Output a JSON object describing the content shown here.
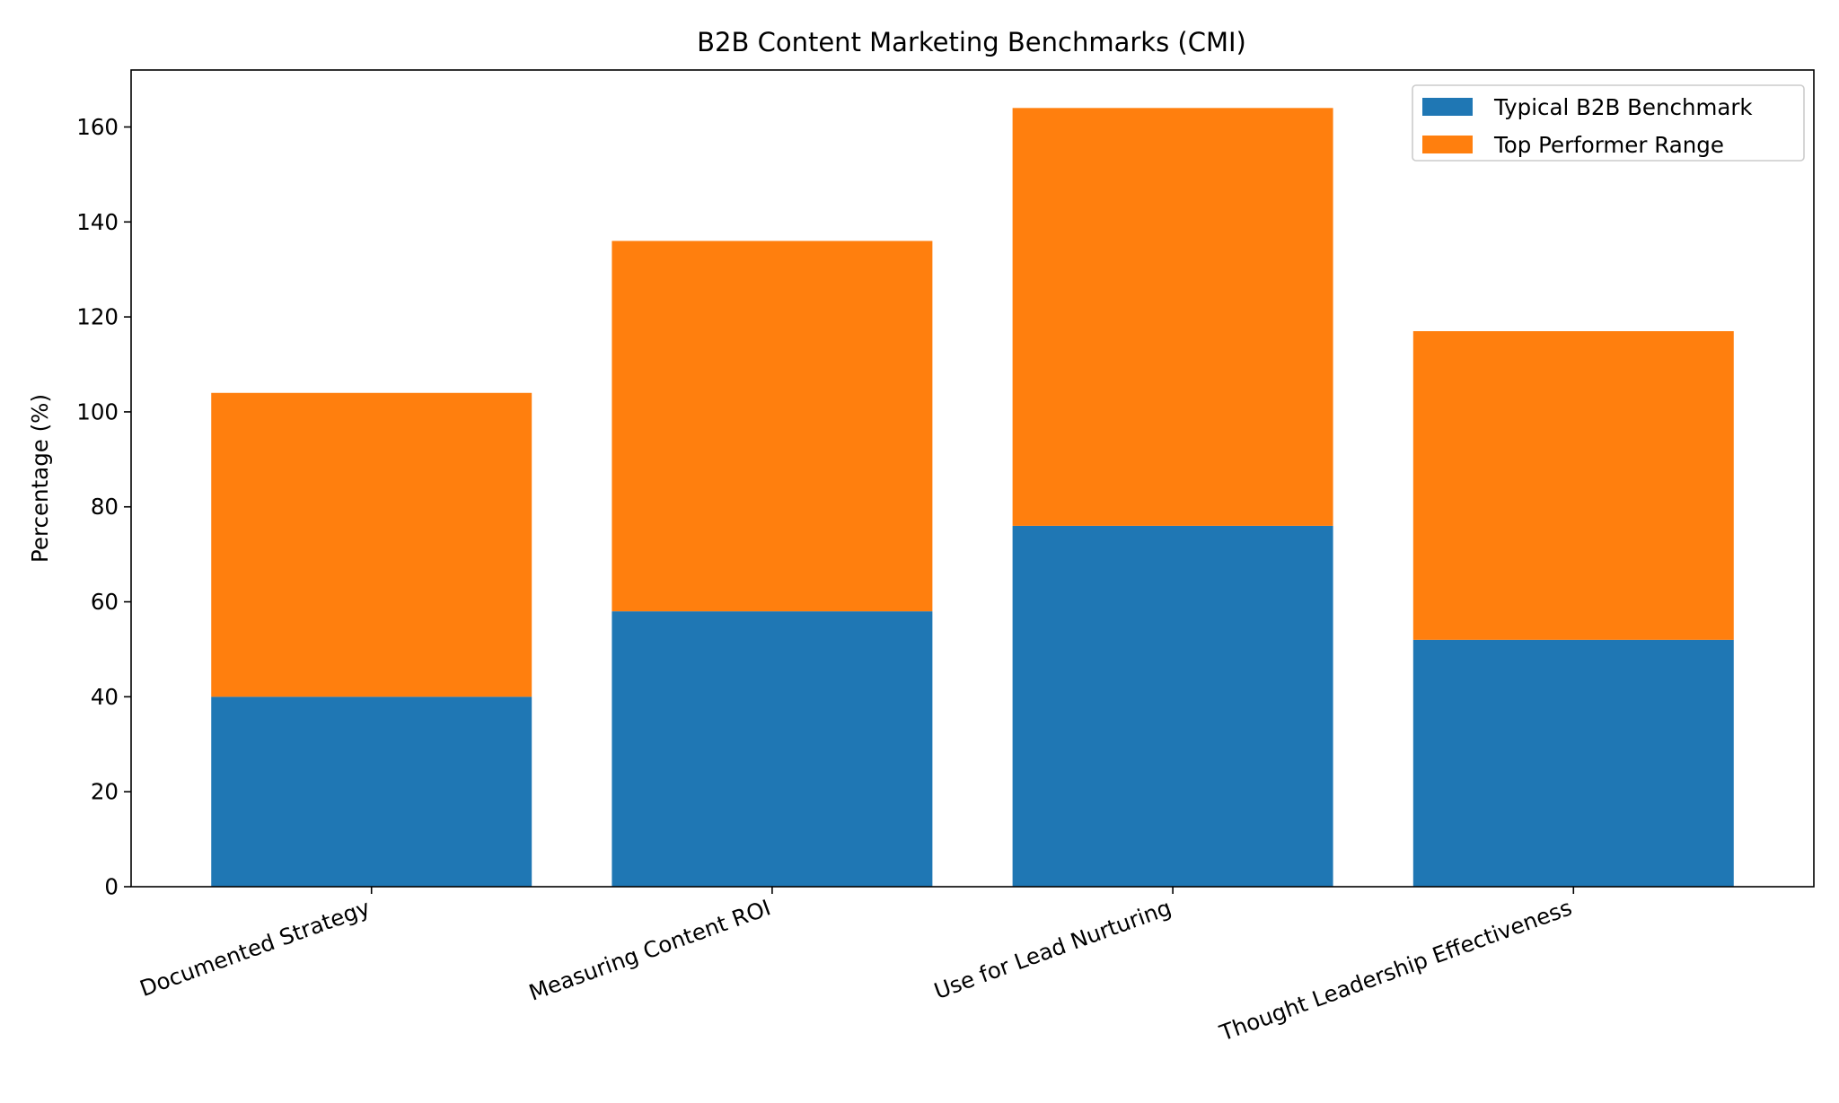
{
  "chart_data": {
    "type": "bar",
    "stacked": true,
    "title": "B2B Content Marketing Benchmarks (CMI)",
    "xlabel": "",
    "ylabel": "Percentage (%)",
    "ylim": [
      0,
      172
    ],
    "yticks": [
      0,
      20,
      40,
      60,
      80,
      100,
      120,
      140,
      160
    ],
    "categories": [
      "Documented Strategy",
      "Measuring Content ROI",
      "Use for Lead Nurturing",
      "Thought Leadership Effectiveness"
    ],
    "series": [
      {
        "name": "Typical B2B Benchmark",
        "color": "#1f77b4",
        "values": [
          40,
          58,
          76,
          52
        ]
      },
      {
        "name": "Top Performer Range",
        "color": "#ff7f0e",
        "values": [
          64,
          78,
          88,
          65
        ]
      }
    ],
    "legend": {
      "position": "upper right"
    },
    "grid": false
  }
}
